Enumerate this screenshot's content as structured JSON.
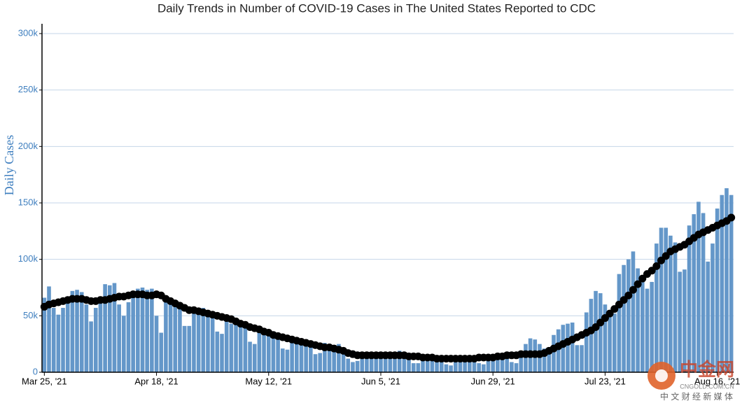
{
  "chart_data": {
    "type": "bar",
    "title": "Daily Trends in Number of COVID-19 Cases in The United States Reported to CDC",
    "y_label": "Daily Cases",
    "categories": [
      "Mar 25, '21",
      null,
      null,
      null,
      null,
      null,
      null,
      null,
      null,
      null,
      null,
      null,
      null,
      null,
      null,
      null,
      null,
      null,
      null,
      null,
      null,
      null,
      null,
      null,
      "Apr 18, '21",
      null,
      null,
      null,
      null,
      null,
      null,
      null,
      null,
      null,
      null,
      null,
      null,
      null,
      null,
      null,
      null,
      null,
      null,
      null,
      null,
      null,
      null,
      null,
      "May 12, '21",
      null,
      null,
      null,
      null,
      null,
      null,
      null,
      null,
      null,
      null,
      null,
      null,
      null,
      null,
      null,
      null,
      null,
      null,
      null,
      null,
      null,
      null,
      null,
      "Jun 5, '21",
      null,
      null,
      null,
      null,
      null,
      null,
      null,
      null,
      null,
      null,
      null,
      null,
      null,
      null,
      null,
      null,
      null,
      null,
      null,
      null,
      null,
      null,
      null,
      "Jun 29, '21",
      null,
      null,
      null,
      null,
      null,
      null,
      null,
      null,
      null,
      null,
      null,
      null,
      null,
      null,
      null,
      null,
      null,
      null,
      null,
      null,
      null,
      null,
      null,
      "Jul 23, '21",
      null,
      null,
      null,
      null,
      null,
      null,
      null,
      null,
      null,
      null,
      null,
      null,
      null,
      null,
      null,
      null,
      null,
      null,
      null,
      null,
      null,
      null,
      null,
      "Aug 16, '21",
      null,
      null,
      null
    ],
    "series": [
      {
        "type": "bar",
        "color": "#6497c9",
        "values": [
          66000,
          76000,
          57000,
          51000,
          57000,
          62000,
          72000,
          73000,
          71000,
          60000,
          45000,
          57000,
          63000,
          78000,
          77000,
          79000,
          60000,
          50000,
          62000,
          70000,
          74000,
          75000,
          73000,
          74000,
          50000,
          35000,
          63000,
          65000,
          64000,
          60000,
          41000,
          41000,
          55000,
          53000,
          57000,
          54000,
          51000,
          36000,
          34000,
          45000,
          43000,
          44000,
          44000,
          42000,
          27000,
          25000,
          35000,
          34000,
          33000,
          36000,
          31000,
          21000,
          20000,
          30000,
          29000,
          30000,
          29000,
          27000,
          16000,
          17000,
          26000,
          23000,
          24000,
          25000,
          21000,
          12000,
          9000,
          10000,
          18000,
          18000,
          17000,
          16000,
          14000,
          13000,
          15000,
          15000,
          19000,
          17000,
          13000,
          8000,
          8000,
          12000,
          12000,
          13000,
          12000,
          10000,
          7000,
          6000,
          10000,
          13000,
          12000,
          14000,
          13000,
          8000,
          7000,
          14000,
          14000,
          15000,
          17000,
          14000,
          9000,
          8000,
          14000,
          25000,
          30000,
          29000,
          25000,
          21000,
          19000,
          33000,
          38000,
          42000,
          43000,
          44000,
          24000,
          24000,
          53000,
          65000,
          72000,
          70000,
          60000,
          50000,
          52000,
          87000,
          95000,
          100000,
          107000,
          92000,
          80000,
          74000,
          80000,
          114000,
          128000,
          128000,
          121000,
          115000,
          89000,
          91000,
          130000,
          140000,
          151000,
          141000,
          98000,
          114000,
          145000,
          157000,
          163000,
          157000
        ]
      },
      {
        "type": "line",
        "color": "#000000",
        "values": [
          58000,
          60000,
          61000,
          62000,
          63000,
          64000,
          65000,
          65000,
          65000,
          64000,
          63000,
          63000,
          64000,
          64000,
          65000,
          66000,
          67000,
          67000,
          68000,
          69000,
          69000,
          69000,
          68000,
          68000,
          69000,
          68000,
          65000,
          63000,
          61000,
          59000,
          57000,
          55000,
          55000,
          54000,
          53000,
          52000,
          51000,
          50000,
          49000,
          48000,
          47000,
          45000,
          43000,
          42000,
          40000,
          39000,
          38000,
          36000,
          35000,
          33000,
          32000,
          31000,
          30000,
          29000,
          28000,
          27000,
          26000,
          25000,
          24000,
          23000,
          22000,
          22000,
          21000,
          20000,
          19000,
          17000,
          16000,
          15000,
          15000,
          15000,
          15000,
          15000,
          15000,
          15000,
          15000,
          15000,
          15000,
          15000,
          14000,
          14000,
          14000,
          13000,
          13000,
          13000,
          12000,
          12000,
          12000,
          12000,
          12000,
          12000,
          12000,
          12000,
          12000,
          13000,
          13000,
          13000,
          13000,
          14000,
          14000,
          15000,
          15000,
          15000,
          16000,
          16000,
          16000,
          16000,
          16000,
          17000,
          19000,
          21000,
          23000,
          25000,
          27000,
          29000,
          31000,
          33000,
          35000,
          37000,
          40000,
          44000,
          48000,
          52000,
          56000,
          60000,
          64000,
          68000,
          73000,
          78000,
          83000,
          87000,
          90000,
          94000,
          99000,
          103000,
          107000,
          109000,
          111000,
          113000,
          116000,
          119000,
          122000,
          124000,
          126000,
          128000,
          130000,
          132000,
          134000,
          137000
        ]
      }
    ],
    "ylim": [
      0,
      300000
    ],
    "yticks": [
      {
        "value": 0,
        "label": "0"
      },
      {
        "value": 50000,
        "label": "50k"
      },
      {
        "value": 100000,
        "label": "100k"
      },
      {
        "value": 150000,
        "label": "150k"
      },
      {
        "value": 200000,
        "label": "200k"
      },
      {
        "value": 250000,
        "label": "250k"
      },
      {
        "value": 300000,
        "label": "300k"
      }
    ],
    "grid": true,
    "watermark": {
      "logo": "中金网",
      "url": "CNGOLD.COM.CN",
      "tagline": "中 文 财 经 新 媒 体"
    }
  }
}
